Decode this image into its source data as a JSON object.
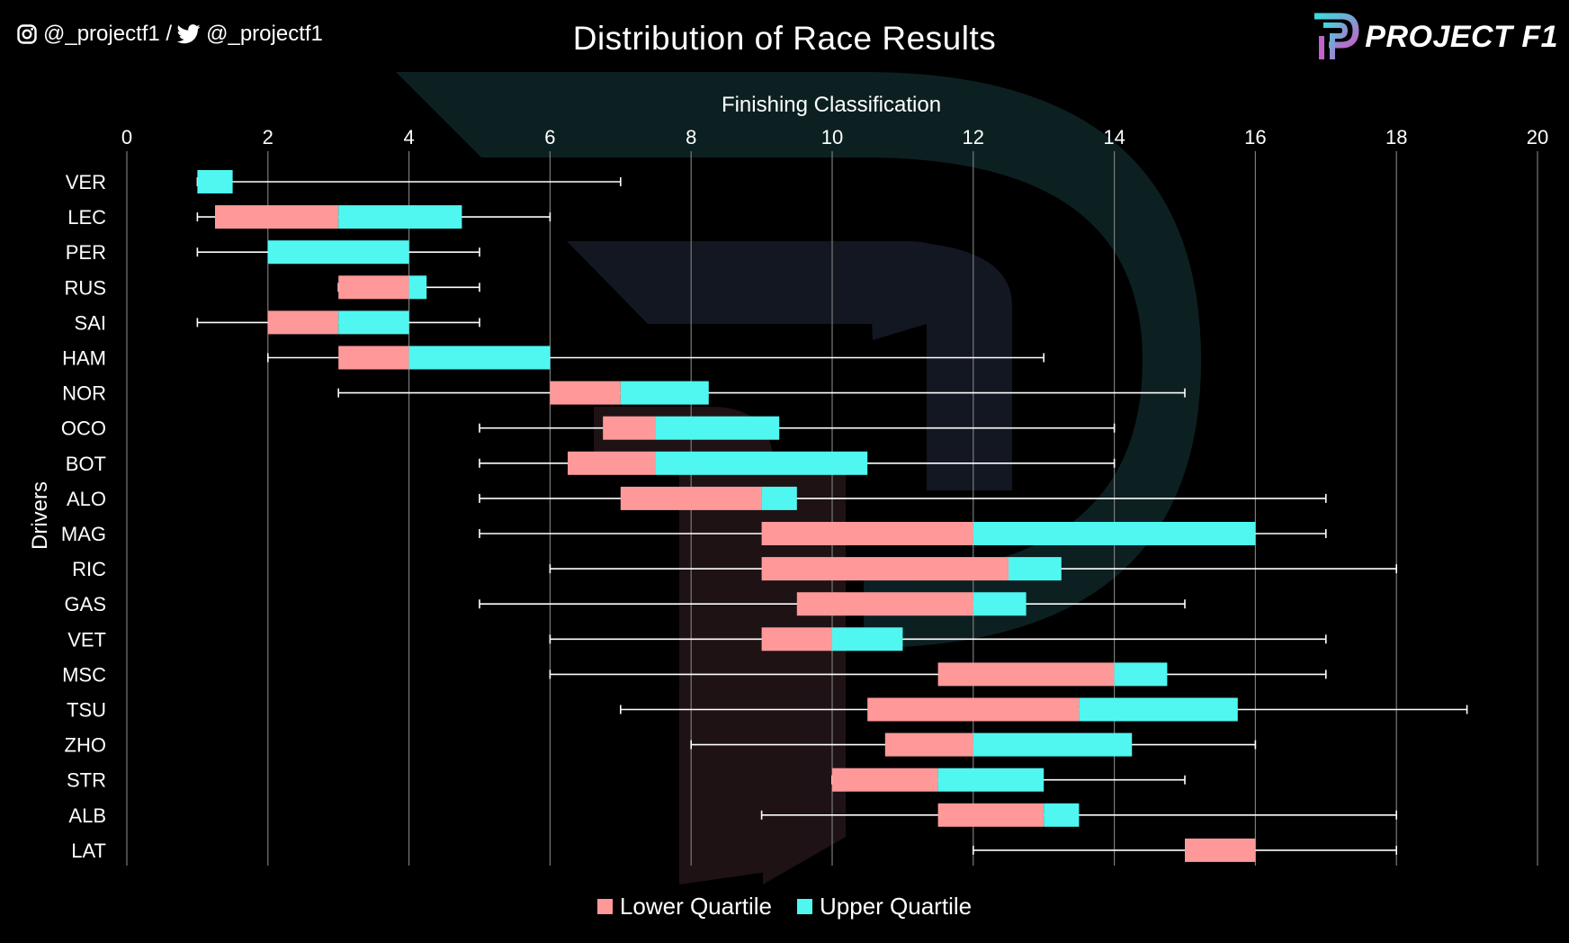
{
  "header": {
    "social_text": "@_projectf1 / ",
    "social_text2": "@_projectf1",
    "brand": "PROJECT F1"
  },
  "colors": {
    "lower": "#ff9999",
    "upper": "#4ff7f0",
    "grid": "#7a7a7a",
    "background": "#000000"
  },
  "chart_data": {
    "type": "boxplot",
    "title": "Distribution of Race Results",
    "xlabel": "Finishing Classification",
    "ylabel": "Drivers",
    "xlim": [
      0,
      20
    ],
    "xticks": [
      0,
      2,
      4,
      6,
      8,
      10,
      12,
      14,
      16,
      18,
      20
    ],
    "xaxis_position": "top",
    "grid": true,
    "legend": [
      "Lower Quartile",
      "Upper Quartile"
    ],
    "legend_position": "bottom",
    "series": [
      {
        "driver": "VER",
        "min": 1,
        "q1": 1,
        "median": 1,
        "q3": 1.5,
        "max": 7
      },
      {
        "driver": "LEC",
        "min": 1,
        "q1": 1.25,
        "median": 3,
        "q3": 4.75,
        "max": 6
      },
      {
        "driver": "PER",
        "min": 1,
        "q1": 2,
        "median": 2,
        "q3": 4,
        "max": 5
      },
      {
        "driver": "RUS",
        "min": 3,
        "q1": 3,
        "median": 4,
        "q3": 4.25,
        "max": 5
      },
      {
        "driver": "SAI",
        "min": 1,
        "q1": 2,
        "median": 3,
        "q3": 4,
        "max": 5
      },
      {
        "driver": "HAM",
        "min": 2,
        "q1": 3,
        "median": 4,
        "q3": 6,
        "max": 13
      },
      {
        "driver": "NOR",
        "min": 3,
        "q1": 6,
        "median": 7,
        "q3": 8.25,
        "max": 15
      },
      {
        "driver": "OCO",
        "min": 5,
        "q1": 6.75,
        "median": 7.5,
        "q3": 9.25,
        "max": 14
      },
      {
        "driver": "BOT",
        "min": 5,
        "q1": 6.25,
        "median": 7.5,
        "q3": 10.5,
        "max": 14
      },
      {
        "driver": "ALO",
        "min": 5,
        "q1": 7,
        "median": 9,
        "q3": 9.5,
        "max": 17
      },
      {
        "driver": "MAG",
        "min": 5,
        "q1": 9,
        "median": 12,
        "q3": 16,
        "max": 17
      },
      {
        "driver": "RIC",
        "min": 6,
        "q1": 9,
        "median": 12.5,
        "q3": 13.25,
        "max": 18
      },
      {
        "driver": "GAS",
        "min": 5,
        "q1": 9.5,
        "median": 12,
        "q3": 12.75,
        "max": 15
      },
      {
        "driver": "VET",
        "min": 6,
        "q1": 9,
        "median": 10,
        "q3": 11,
        "max": 17
      },
      {
        "driver": "MSC",
        "min": 6,
        "q1": 11.5,
        "median": 14,
        "q3": 14.75,
        "max": 17
      },
      {
        "driver": "TSU",
        "min": 7,
        "q1": 10.5,
        "median": 13.5,
        "q3": 15.75,
        "max": 19
      },
      {
        "driver": "ZHO",
        "min": 8,
        "q1": 10.75,
        "median": 12,
        "q3": 14.25,
        "max": 16
      },
      {
        "driver": "STR",
        "min": 10,
        "q1": 10,
        "median": 11.5,
        "q3": 13,
        "max": 15
      },
      {
        "driver": "ALB",
        "min": 9,
        "q1": 11.5,
        "median": 13,
        "q3": 13.5,
        "max": 18
      },
      {
        "driver": "LAT",
        "min": 12,
        "q1": 15,
        "median": 16,
        "q3": 16,
        "max": 18
      }
    ]
  }
}
